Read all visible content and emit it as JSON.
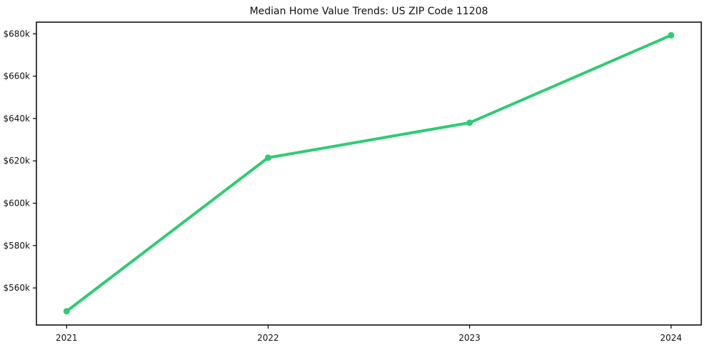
{
  "chart_data": {
    "type": "line",
    "title": "Median Home Value Trends: US ZIP Code 11208",
    "xlabel": "",
    "ylabel": "",
    "x": [
      2021,
      2022,
      2023,
      2024
    ],
    "series": [
      {
        "name": "Median Home Value",
        "values": [
          549000,
          621500,
          638000,
          679300
        ]
      }
    ],
    "xticks": [
      {
        "value": 2021,
        "label": "2021"
      },
      {
        "value": 2022,
        "label": "2022"
      },
      {
        "value": 2023,
        "label": "2023"
      },
      {
        "value": 2024,
        "label": "2024"
      }
    ],
    "yticks": [
      {
        "value": 560000,
        "label": "$560k"
      },
      {
        "value": 580000,
        "label": "$580k"
      },
      {
        "value": 600000,
        "label": "$600k"
      },
      {
        "value": 620000,
        "label": "$620k"
      },
      {
        "value": 640000,
        "label": "$640k"
      },
      {
        "value": 660000,
        "label": "$660k"
      },
      {
        "value": 680000,
        "label": "$680k"
      }
    ],
    "xlim": [
      2020.85,
      2024.15
    ],
    "ylim": [
      542500,
      685500
    ],
    "grid": false,
    "legend": "none",
    "colors": {
      "line": "#2ecc71",
      "marker": "#2ecc71",
      "frame": "#000000",
      "text": "#111111",
      "background": "#ffffff"
    }
  }
}
